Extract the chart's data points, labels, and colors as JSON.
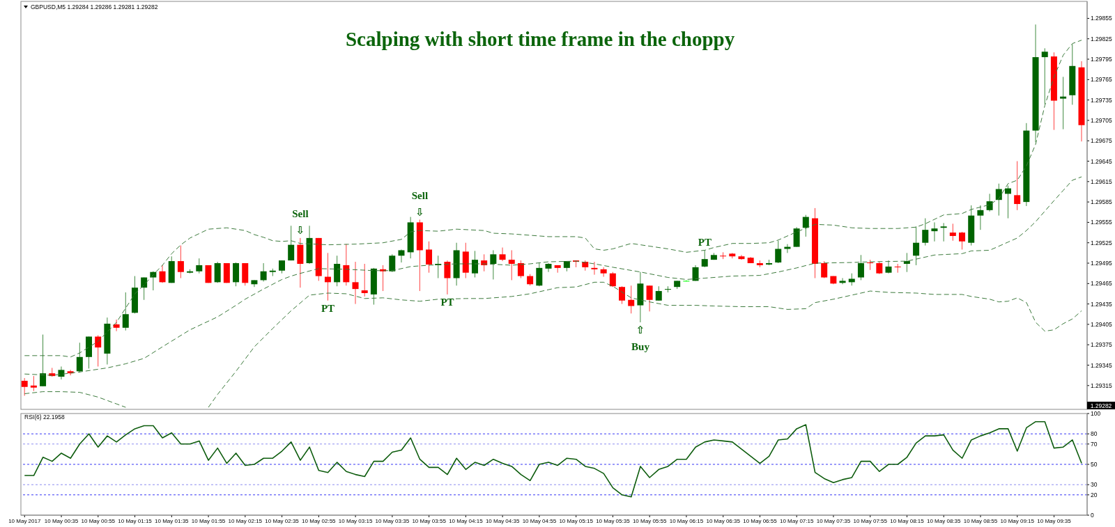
{
  "chart_data": [
    {
      "type": "candlestick",
      "title": "Scalping with short time frame in the choppy",
      "subtitle": "GBPUSD,M5  1.29284 1.29286 1.29281 1.29282",
      "x": [
        "2017-05-10T00:15",
        "2017-05-10T00:20",
        "2017-05-10T00:25",
        "2017-05-10T00:30",
        "2017-05-10T00:35",
        "2017-05-10T00:40",
        "2017-05-10T00:45",
        "2017-05-10T00:50",
        "2017-05-10T00:55",
        "2017-05-10T01:00",
        "2017-05-10T01:05",
        "2017-05-10T01:10",
        "2017-05-10T01:15",
        "2017-05-10T01:20",
        "2017-05-10T01:25",
        "2017-05-10T01:30",
        "2017-05-10T01:35",
        "2017-05-10T01:40",
        "2017-05-10T01:45",
        "2017-05-10T01:50",
        "2017-05-10T01:55",
        "2017-05-10T02:00",
        "2017-05-10T02:05",
        "2017-05-10T02:10",
        "2017-05-10T02:15",
        "2017-05-10T02:20",
        "2017-05-10T02:25",
        "2017-05-10T02:30",
        "2017-05-10T02:35",
        "2017-05-10T02:40",
        "2017-05-10T02:45",
        "2017-05-10T02:50",
        "2017-05-10T02:55",
        "2017-05-10T03:00",
        "2017-05-10T03:05",
        "2017-05-10T03:10",
        "2017-05-10T03:15",
        "2017-05-10T03:20",
        "2017-05-10T03:25",
        "2017-05-10T03:30",
        "2017-05-10T03:35",
        "2017-05-10T03:40",
        "2017-05-10T03:45",
        "2017-05-10T03:50",
        "2017-05-10T03:55",
        "2017-05-10T04:00",
        "2017-05-10T04:05",
        "2017-05-10T04:10",
        "2017-05-10T04:15",
        "2017-05-10T04:20",
        "2017-05-10T04:25",
        "2017-05-10T04:30",
        "2017-05-10T04:35",
        "2017-05-10T04:40",
        "2017-05-10T04:45",
        "2017-05-10T04:50",
        "2017-05-10T04:55",
        "2017-05-10T05:00",
        "2017-05-10T05:05",
        "2017-05-10T05:10",
        "2017-05-10T05:15",
        "2017-05-10T05:20",
        "2017-05-10T05:25",
        "2017-05-10T05:30",
        "2017-05-10T05:35",
        "2017-05-10T05:40",
        "2017-05-10T05:45",
        "2017-05-10T05:50",
        "2017-05-10T05:55",
        "2017-05-10T06:00",
        "2017-05-10T06:05",
        "2017-05-10T06:10",
        "2017-05-10T06:15",
        "2017-05-10T06:20",
        "2017-05-10T06:25",
        "2017-05-10T06:30",
        "2017-05-10T06:35",
        "2017-05-10T06:40",
        "2017-05-10T06:45",
        "2017-05-10T06:50",
        "2017-05-10T06:55",
        "2017-05-10T07:00",
        "2017-05-10T07:05",
        "2017-05-10T07:10",
        "2017-05-10T07:15",
        "2017-05-10T07:20",
        "2017-05-10T07:25",
        "2017-05-10T07:30",
        "2017-05-10T07:35",
        "2017-05-10T07:40",
        "2017-05-10T07:45",
        "2017-05-10T07:50",
        "2017-05-10T07:55",
        "2017-05-10T08:00",
        "2017-05-10T08:05",
        "2017-05-10T08:10",
        "2017-05-10T08:15",
        "2017-05-10T08:20",
        "2017-05-10T08:25",
        "2017-05-10T08:30",
        "2017-05-10T08:35",
        "2017-05-10T08:40",
        "2017-05-10T08:45",
        "2017-05-10T08:50",
        "2017-05-10T08:55",
        "2017-05-10T09:00",
        "2017-05-10T09:05",
        "2017-05-10T09:10",
        "2017-05-10T09:15",
        "2017-05-10T09:20",
        "2017-05-10T09:25",
        "2017-05-10T09:30",
        "2017-05-10T09:35",
        "2017-05-10T09:40",
        "2017-05-10T09:45",
        "2017-05-10T09:50"
      ],
      "ohlc": [
        [
          1.29322,
          1.29326,
          1.293,
          1.29313
        ],
        [
          1.29315,
          1.29329,
          1.29307,
          1.29312
        ],
        [
          1.29314,
          1.2939,
          1.29314,
          1.29333
        ],
        [
          1.29333,
          1.29341,
          1.29328,
          1.29329
        ],
        [
          1.29328,
          1.29343,
          1.29324,
          1.29338
        ],
        [
          1.29336,
          1.29338,
          1.2933,
          1.29333
        ],
        [
          1.29336,
          1.29378,
          1.29334,
          1.29357
        ],
        [
          1.29357,
          1.29387,
          1.2934,
          1.29387
        ],
        [
          1.29387,
          1.29389,
          1.29343,
          1.29371
        ],
        [
          1.29362,
          1.29415,
          1.29346,
          1.29406
        ],
        [
          1.29405,
          1.29412,
          1.29395,
          1.294
        ],
        [
          1.294,
          1.29452,
          1.29396,
          1.2942
        ],
        [
          1.29422,
          1.29476,
          1.29421,
          1.29459
        ],
        [
          1.29459,
          1.29474,
          1.29441,
          1.29474
        ],
        [
          1.29474,
          1.29483,
          1.29455,
          1.29482
        ],
        [
          1.29483,
          1.29492,
          1.29466,
          1.29467
        ],
        [
          1.29466,
          1.29505,
          1.29466,
          1.29498
        ],
        [
          1.29498,
          1.29521,
          1.29473,
          1.29482
        ],
        [
          1.29481,
          1.29486,
          1.2948,
          1.29483
        ],
        [
          1.29483,
          1.29502,
          1.2948,
          1.29492
        ],
        [
          1.29492,
          1.29492,
          1.29466,
          1.29466
        ],
        [
          1.29467,
          1.29497,
          1.29466,
          1.29495
        ],
        [
          1.29495,
          1.29495,
          1.29466,
          1.29466
        ],
        [
          1.29467,
          1.29496,
          1.29461,
          1.29495
        ],
        [
          1.29495,
          1.29495,
          1.29462,
          1.29466
        ],
        [
          1.29464,
          1.2947,
          1.2946,
          1.2947
        ],
        [
          1.2947,
          1.29495,
          1.29468,
          1.29483
        ],
        [
          1.29482,
          1.29487,
          1.29476,
          1.29484
        ],
        [
          1.29484,
          1.29499,
          1.2948,
          1.29499
        ],
        [
          1.29499,
          1.2955,
          1.29499,
          1.29522
        ],
        [
          1.29522,
          1.29532,
          1.29459,
          1.29494
        ],
        [
          1.29495,
          1.2955,
          1.29494,
          1.29532
        ],
        [
          1.29532,
          1.29532,
          1.29469,
          1.29476
        ],
        [
          1.29475,
          1.2951,
          1.2944,
          1.29467
        ],
        [
          1.29467,
          1.29506,
          1.29461,
          1.29494
        ],
        [
          1.29492,
          1.29523,
          1.29462,
          1.29467
        ],
        [
          1.29467,
          1.29497,
          1.29435,
          1.29457
        ],
        [
          1.29455,
          1.29494,
          1.29446,
          1.29451
        ],
        [
          1.29449,
          1.29488,
          1.29434,
          1.29487
        ],
        [
          1.29486,
          1.29492,
          1.29454,
          1.29483
        ],
        [
          1.29483,
          1.29508,
          1.29482,
          1.29506
        ],
        [
          1.29506,
          1.29515,
          1.29496,
          1.29514
        ],
        [
          1.29511,
          1.29563,
          1.29502,
          1.29555
        ],
        [
          1.29555,
          1.29559,
          1.29454,
          1.29514
        ],
        [
          1.29515,
          1.29527,
          1.29481,
          1.29493
        ],
        [
          1.29492,
          1.29506,
          1.29473,
          1.29494
        ],
        [
          1.29497,
          1.29499,
          1.29449,
          1.29473
        ],
        [
          1.29473,
          1.29525,
          1.29462,
          1.29514
        ],
        [
          1.29512,
          1.29525,
          1.29473,
          1.29481
        ],
        [
          1.2948,
          1.29513,
          1.29474,
          1.295
        ],
        [
          1.29499,
          1.29508,
          1.29483,
          1.29492
        ],
        [
          1.29494,
          1.29514,
          1.29471,
          1.29508
        ],
        [
          1.29508,
          1.29518,
          1.29498,
          1.295
        ],
        [
          1.295,
          1.29514,
          1.2947,
          1.29494
        ],
        [
          1.29495,
          1.29499,
          1.29473,
          1.29476
        ],
        [
          1.29476,
          1.29479,
          1.29462,
          1.29464
        ],
        [
          1.29462,
          1.29495,
          1.29461,
          1.29488
        ],
        [
          1.29487,
          1.29495,
          1.29482,
          1.29494
        ],
        [
          1.29492,
          1.29492,
          1.29481,
          1.29488
        ],
        [
          1.29488,
          1.29498,
          1.29483,
          1.29498
        ],
        [
          1.29499,
          1.29499,
          1.29489,
          1.29497
        ],
        [
          1.29497,
          1.29499,
          1.29484,
          1.29489
        ],
        [
          1.29488,
          1.29497,
          1.29478,
          1.29486
        ],
        [
          1.29486,
          1.29489,
          1.29475,
          1.2948
        ],
        [
          1.2948,
          1.29482,
          1.2946,
          1.29461
        ],
        [
          1.2946,
          1.29461,
          1.29435,
          1.2944
        ],
        [
          1.29441,
          1.29462,
          1.29421,
          1.29432
        ],
        [
          1.29433,
          1.29482,
          1.29408,
          1.29465
        ],
        [
          1.29462,
          1.29462,
          1.29424,
          1.29441
        ],
        [
          1.2944,
          1.29461,
          1.2944,
          1.29454
        ],
        [
          1.29456,
          1.29461,
          1.29452,
          1.29457
        ],
        [
          1.2946,
          1.29469,
          1.29457,
          1.29469
        ],
        [
          1.29469,
          1.2947,
          1.29468,
          1.29469
        ],
        [
          1.29469,
          1.29492,
          1.29469,
          1.29489
        ],
        [
          1.2949,
          1.29514,
          1.29489,
          1.29501
        ],
        [
          1.295,
          1.2951,
          1.295,
          1.29507
        ],
        [
          1.29506,
          1.29511,
          1.29501,
          1.29505
        ],
        [
          1.29509,
          1.2951,
          1.29502,
          1.29505
        ],
        [
          1.29505,
          1.29507,
          1.295,
          1.29501
        ],
        [
          1.29503,
          1.29504,
          1.29495,
          1.29495
        ],
        [
          1.29495,
          1.29499,
          1.29489,
          1.29492
        ],
        [
          1.29493,
          1.295,
          1.29492,
          1.29495
        ],
        [
          1.29496,
          1.29528,
          1.29495,
          1.29516
        ],
        [
          1.29516,
          1.29523,
          1.2951,
          1.29519
        ],
        [
          1.29519,
          1.29548,
          1.29519,
          1.29546
        ],
        [
          1.29547,
          1.29566,
          1.29534,
          1.29563
        ],
        [
          1.29561,
          1.29576,
          1.29473,
          1.29494
        ],
        [
          1.29495,
          1.29498,
          1.29473,
          1.29474
        ],
        [
          1.29476,
          1.29476,
          1.29464,
          1.29465
        ],
        [
          1.29466,
          1.29473,
          1.29464,
          1.29469
        ],
        [
          1.29467,
          1.2948,
          1.29462,
          1.29472
        ],
        [
          1.29474,
          1.29507,
          1.2947,
          1.29495
        ],
        [
          1.29496,
          1.295,
          1.29485,
          1.29495
        ],
        [
          1.29495,
          1.29497,
          1.29479,
          1.2948
        ],
        [
          1.29481,
          1.29499,
          1.2948,
          1.2949
        ],
        [
          1.2949,
          1.29494,
          1.29481,
          1.29489
        ],
        [
          1.29494,
          1.2951,
          1.29482,
          1.29498
        ],
        [
          1.29506,
          1.29549,
          1.29492,
          1.29525
        ],
        [
          1.29525,
          1.29561,
          1.29521,
          1.29544
        ],
        [
          1.29542,
          1.29555,
          1.29527,
          1.29546
        ],
        [
          1.29547,
          1.29554,
          1.29527,
          1.29549
        ],
        [
          1.2954,
          1.29553,
          1.29528,
          1.29535
        ],
        [
          1.2954,
          1.29541,
          1.29515,
          1.29527
        ],
        [
          1.29525,
          1.2958,
          1.29521,
          1.29565
        ],
        [
          1.29565,
          1.2958,
          1.29544,
          1.29573
        ],
        [
          1.29573,
          1.29597,
          1.29571,
          1.29586
        ],
        [
          1.29588,
          1.29612,
          1.29565,
          1.29604
        ],
        [
          1.29597,
          1.29609,
          1.29561,
          1.29605
        ],
        [
          1.29595,
          1.29645,
          1.29573,
          1.29582
        ],
        [
          1.29585,
          1.29701,
          1.29579,
          1.2969
        ],
        [
          1.2969,
          1.29846,
          1.29673,
          1.29798
        ],
        [
          1.29798,
          1.29811,
          1.29729,
          1.29806
        ],
        [
          1.29799,
          1.29805,
          1.29691,
          1.29734
        ],
        [
          1.29737,
          1.29769,
          1.29692,
          1.2974
        ],
        [
          1.29742,
          1.29817,
          1.29728,
          1.29785
        ],
        [
          1.29783,
          1.29792,
          1.29674,
          1.29698
        ]
      ],
      "colors": [
        "#ff0000",
        "#ff0000",
        "#006400",
        "#ff0000",
        "#006400",
        "#ff0000",
        "#006400",
        "#006400",
        "#ff0000",
        "#006400",
        "#ff0000",
        "#006400",
        "#006400",
        "#006400",
        "#006400",
        "#ff0000",
        "#006400",
        "#ff0000",
        "#006400",
        "#006400",
        "#ff0000",
        "#006400",
        "#ff0000",
        "#006400",
        "#ff0000",
        "#006400",
        "#006400",
        "#006400",
        "#006400",
        "#006400",
        "#ff0000",
        "#006400",
        "#ff0000",
        "#ff0000",
        "#006400",
        "#ff0000",
        "#ff0000",
        "#ff0000",
        "#006400",
        "#ff0000",
        "#006400",
        "#006400",
        "#006400",
        "#ff0000",
        "#ff0000",
        "#006400",
        "#ff0000",
        "#006400",
        "#ff0000",
        "#006400",
        "#ff0000",
        "#006400",
        "#ff0000",
        "#ff0000",
        "#ff0000",
        "#ff0000",
        "#006400",
        "#006400",
        "#ff0000",
        "#006400",
        "#ff0000",
        "#ff0000",
        "#ff0000",
        "#ff0000",
        "#ff0000",
        "#ff0000",
        "#ff0000",
        "#006400",
        "#ff0000",
        "#006400",
        "#006400",
        "#006400",
        "#00ff00",
        "#006400",
        "#006400",
        "#006400",
        "#ff0000",
        "#ff0000",
        "#ff0000",
        "#ff0000",
        "#ff0000",
        "#006400",
        "#006400",
        "#006400",
        "#006400",
        "#006400",
        "#ff0000",
        "#ff0000",
        "#ff0000",
        "#006400",
        "#006400",
        "#006400",
        "#ff0000",
        "#ff0000",
        "#006400",
        "#ff0000",
        "#006400",
        "#006400",
        "#006400",
        "#006400",
        "#006400",
        "#ff0000",
        "#ff0000",
        "#006400",
        "#006400",
        "#006400",
        "#006400",
        "#006400",
        "#ff0000",
        "#006400",
        "#006400",
        "#006400",
        "#ff0000",
        "#006400",
        "#006400",
        "#ff0000"
      ],
      "series": [
        {
          "type": "line",
          "color": "#3c7a3c",
          "line_style": "dashed",
          "x": [
            "2017-05-10T00:15",
            "2017-05-10T00:25",
            "2017-05-10T00:35",
            "2017-05-10T00:40",
            "2017-05-10T00:45",
            "2017-05-10T00:55",
            "2017-05-10T01:05",
            "2017-05-10T01:15",
            "2017-05-10T01:20",
            "2017-05-10T01:25",
            "2017-05-10T01:30",
            "2017-05-10T01:35",
            "2017-05-10T01:40",
            "2017-05-10T01:45",
            "2017-05-10T01:55",
            "2017-05-10T02:05",
            "2017-05-10T02:15",
            "2017-05-10T02:20",
            "2017-05-10T02:25",
            "2017-05-10T02:30",
            "2017-05-10T02:35",
            "2017-05-10T02:40",
            "2017-05-10T02:45",
            "2017-05-10T03:00",
            "2017-05-10T03:15",
            "2017-05-10T03:30",
            "2017-05-10T03:40",
            "2017-05-10T03:45",
            "2017-05-10T03:50",
            "2017-05-10T04:00",
            "2017-05-10T04:10",
            "2017-05-10T04:25",
            "2017-05-10T04:30",
            "2017-05-10T04:40",
            "2017-05-10T04:50",
            "2017-05-10T05:00",
            "2017-05-10T05:15",
            "2017-05-10T05:20",
            "2017-05-10T05:25",
            "2017-05-10T05:30",
            "2017-05-10T05:35",
            "2017-05-10T05:45",
            "2017-05-10T05:55",
            "2017-05-10T06:05",
            "2017-05-10T06:15",
            "2017-05-10T06:25",
            "2017-05-10T06:30",
            "2017-05-10T06:40",
            "2017-05-10T06:50",
            "2017-05-10T07:00",
            "2017-05-10T07:05",
            "2017-05-10T07:15",
            "2017-05-10T07:25",
            "2017-05-10T07:35",
            "2017-05-10T07:45",
            "2017-05-10T07:55",
            "2017-05-10T08:10",
            "2017-05-10T08:20",
            "2017-05-10T08:25",
            "2017-05-10T08:35",
            "2017-05-10T08:45",
            "2017-05-10T08:50",
            "2017-05-10T09:00",
            "2017-05-10T09:05",
            "2017-05-10T09:10",
            "2017-05-10T09:15",
            "2017-05-10T09:20",
            "2017-05-10T09:25",
            "2017-05-10T09:30",
            "2017-05-10T09:35",
            "2017-05-10T09:40",
            "2017-05-10T09:45",
            "2017-05-10T09:50"
          ],
          "values": [
            1.29359,
            1.29359,
            1.29359,
            1.29357,
            1.29363,
            1.2938,
            1.29408,
            1.2945,
            1.29463,
            1.29478,
            1.29492,
            1.29509,
            1.29522,
            1.29532,
            1.29545,
            1.29547,
            1.29543,
            1.29537,
            1.29533,
            1.29528,
            1.29527,
            1.29528,
            1.29524,
            1.29522,
            1.29523,
            1.29525,
            1.2953,
            1.29541,
            1.29543,
            1.29542,
            1.29545,
            1.29543,
            1.29539,
            1.29538,
            1.29536,
            1.29534,
            1.29534,
            1.29532,
            1.29516,
            1.29514,
            1.29516,
            1.29524,
            1.2952,
            1.29516,
            1.29511,
            1.29514,
            1.29518,
            1.29524,
            1.29524,
            1.29525,
            1.29529,
            1.29541,
            1.29552,
            1.29551,
            1.29547,
            1.29546,
            1.29546,
            1.29548,
            1.29553,
            1.29566,
            1.29568,
            1.29574,
            1.29581,
            1.2959,
            1.29612,
            1.29617,
            1.29638,
            1.2967,
            1.29727,
            1.29769,
            1.29801,
            1.29818,
            1.29823
          ]
        },
        {
          "type": "line",
          "color": "#3c7a3c",
          "line_style": "dashed",
          "x": [
            "2017-05-10T00:15",
            "2017-05-10T00:30",
            "2017-05-10T00:45",
            "2017-05-10T01:00",
            "2017-05-10T01:10",
            "2017-05-10T01:20",
            "2017-05-10T01:30",
            "2017-05-10T01:45",
            "2017-05-10T02:00",
            "2017-05-10T02:10",
            "2017-05-10T02:15",
            "2017-05-10T02:25",
            "2017-05-10T02:35",
            "2017-05-10T02:40",
            "2017-05-10T02:45",
            "2017-05-10T02:55",
            "2017-05-10T03:10",
            "2017-05-10T03:25",
            "2017-05-10T03:35",
            "2017-05-10T03:45",
            "2017-05-10T03:55",
            "2017-05-10T04:10",
            "2017-05-10T04:25",
            "2017-05-10T04:40",
            "2017-05-10T04:50",
            "2017-05-10T05:00",
            "2017-05-10T05:15",
            "2017-05-10T05:25",
            "2017-05-10T05:35",
            "2017-05-10T05:50",
            "2017-05-10T06:05",
            "2017-05-10T06:15",
            "2017-05-10T06:25",
            "2017-05-10T06:40",
            "2017-05-10T06:55",
            "2017-05-10T07:05",
            "2017-05-10T07:15",
            "2017-05-10T07:25",
            "2017-05-10T07:45",
            "2017-05-10T07:55",
            "2017-05-10T08:15",
            "2017-05-10T08:20",
            "2017-05-10T08:30",
            "2017-05-10T08:45",
            "2017-05-10T08:50",
            "2017-05-10T09:00",
            "2017-05-10T09:10",
            "2017-05-10T09:15",
            "2017-05-10T09:20",
            "2017-05-10T09:25",
            "2017-05-10T09:35",
            "2017-05-10T09:40",
            "2017-05-10T09:45",
            "2017-05-10T09:50"
          ],
          "values": [
            1.29332,
            1.2933,
            1.29335,
            1.29341,
            1.29347,
            1.29355,
            1.29372,
            1.29397,
            1.29416,
            1.29433,
            1.29442,
            1.29457,
            1.29471,
            1.29476,
            1.2948,
            1.29487,
            1.29486,
            1.29484,
            1.29484,
            1.2949,
            1.29492,
            1.29494,
            1.29494,
            1.29492,
            1.29494,
            1.29497,
            1.29498,
            1.29494,
            1.29489,
            1.29482,
            1.29474,
            1.29471,
            1.29473,
            1.29476,
            1.29477,
            1.29482,
            1.29488,
            1.29495,
            1.29496,
            1.29497,
            1.29498,
            1.29501,
            1.29507,
            1.29509,
            1.29513,
            1.29514,
            1.29526,
            1.29532,
            1.29543,
            1.29556,
            1.29587,
            1.29602,
            1.29617,
            1.29622
          ]
        },
        {
          "type": "line",
          "color": "#3c7a3c",
          "line_style": "dashed",
          "x": [
            "2017-05-10T00:15",
            "2017-05-10T00:25",
            "2017-05-10T00:35",
            "2017-05-10T00:45",
            "2017-05-10T00:55",
            "2017-05-10T01:05",
            "2017-05-10T01:10",
            "2017-05-10T01:30",
            "2017-05-10T01:55",
            "2017-05-10T02:00",
            "2017-05-10T02:10",
            "2017-05-10T02:20",
            "2017-05-10T02:30",
            "2017-05-10T02:40",
            "2017-05-10T02:50",
            "2017-05-10T03:00",
            "2017-05-10T03:10",
            "2017-05-10T03:20",
            "2017-05-10T03:30",
            "2017-05-10T03:40",
            "2017-05-10T03:50",
            "2017-05-10T04:00",
            "2017-05-10T04:15",
            "2017-05-10T04:25",
            "2017-05-10T04:40",
            "2017-05-10T04:50",
            "2017-05-10T05:00",
            "2017-05-10T05:05",
            "2017-05-10T05:15",
            "2017-05-10T05:25",
            "2017-05-10T05:30",
            "2017-05-10T05:35",
            "2017-05-10T05:45",
            "2017-05-10T05:55",
            "2017-05-10T06:05",
            "2017-05-10T06:20",
            "2017-05-10T06:30",
            "2017-05-10T06:45",
            "2017-05-10T07:00",
            "2017-05-10T07:10",
            "2017-05-10T07:20",
            "2017-05-10T07:25",
            "2017-05-10T07:35",
            "2017-05-10T07:45",
            "2017-05-10T07:55",
            "2017-05-10T08:05",
            "2017-05-10T08:20",
            "2017-05-10T08:30",
            "2017-05-10T08:45",
            "2017-05-10T08:50",
            "2017-05-10T09:00",
            "2017-05-10T09:05",
            "2017-05-10T09:10",
            "2017-05-10T09:15",
            "2017-05-10T09:20",
            "2017-05-10T09:25",
            "2017-05-10T09:30",
            "2017-05-10T09:35",
            "2017-05-10T09:40",
            "2017-05-10T09:45",
            "2017-05-10T09:50"
          ],
          "values": [
            1.29303,
            1.29306,
            1.29306,
            1.29305,
            1.29298,
            1.29288,
            1.29283,
            null,
            1.29283,
            1.29302,
            1.29336,
            1.29372,
            1.29399,
            1.29425,
            1.29448,
            1.29451,
            1.2945,
            1.29443,
            1.29444,
            1.29441,
            1.29439,
            1.29442,
            1.29443,
            1.29443,
            1.29446,
            1.2945,
            1.29456,
            1.29459,
            1.2946,
            1.29467,
            1.29467,
            1.29461,
            1.29444,
            1.29438,
            1.29433,
            1.29433,
            1.29432,
            1.29431,
            1.29431,
            1.29427,
            1.29428,
            1.29437,
            1.29442,
            1.29448,
            1.29454,
            1.29452,
            1.29451,
            1.29449,
            1.29449,
            1.29446,
            1.29442,
            1.29438,
            1.29439,
            1.29444,
            1.29437,
            1.29408,
            1.29395,
            1.29397,
            1.29406,
            1.29413,
            1.29425
          ]
        }
      ],
      "xlim": [
        "2017-05-10T00:13",
        "2017-05-10T09:53"
      ],
      "ylim": [
        1.2928,
        1.2988
      ],
      "yticks": [
        1.29315,
        1.29345,
        1.29375,
        1.29405,
        1.29435,
        1.29465,
        1.29495,
        1.29525,
        1.29555,
        1.29585,
        1.29615,
        1.29645,
        1.29675,
        1.29705,
        1.29735,
        1.29765,
        1.29795,
        1.29825,
        1.29855
      ],
      "tick_labels": "y",
      "annotations": [
        {
          "text": "Sell\n⇩",
          "x": "2017-05-10T02:45",
          "y": 1.29532
        },
        {
          "text": "PT",
          "x": "2017-05-10T03:00",
          "y": 1.2944
        },
        {
          "text": "Sell\n⇩",
          "x": "2017-05-10T03:50",
          "y": 1.29559
        },
        {
          "text": "PT",
          "x": "2017-05-10T04:05",
          "y": 1.29449
        },
        {
          "text": "⇧\nBuy",
          "x": "2017-05-10T05:50",
          "y": 1.29408
        },
        {
          "text": "PT",
          "x": "2017-05-10T06:25",
          "y": 1.29514
        },
        "1.29282"
      ]
    },
    {
      "type": "line",
      "title": "RSI(6) 22.1958",
      "x": [
        "2017-05-10T00:15",
        "2017-05-10T00:20",
        "2017-05-10T00:25",
        "2017-05-10T00:30",
        "2017-05-10T00:35",
        "2017-05-10T00:40",
        "2017-05-10T00:45",
        "2017-05-10T00:50",
        "2017-05-10T00:55",
        "2017-05-10T01:00",
        "2017-05-10T01:05",
        "2017-05-10T01:10",
        "2017-05-10T01:15",
        "2017-05-10T01:20",
        "2017-05-10T01:25",
        "2017-05-10T01:30",
        "2017-05-10T01:35",
        "2017-05-10T01:40",
        "2017-05-10T01:45",
        "2017-05-10T01:50",
        "2017-05-10T01:55",
        "2017-05-10T02:00",
        "2017-05-10T02:05",
        "2017-05-10T02:10",
        "2017-05-10T02:15",
        "2017-05-10T02:20",
        "2017-05-10T02:25",
        "2017-05-10T02:30",
        "2017-05-10T02:35",
        "2017-05-10T02:40",
        "2017-05-10T02:45",
        "2017-05-10T02:50",
        "2017-05-10T02:55",
        "2017-05-10T03:00",
        "2017-05-10T03:05",
        "2017-05-10T03:10",
        "2017-05-10T03:15",
        "2017-05-10T03:20",
        "2017-05-10T03:25",
        "2017-05-10T03:30",
        "2017-05-10T03:35",
        "2017-05-10T03:40",
        "2017-05-10T03:45",
        "2017-05-10T03:50",
        "2017-05-10T03:55",
        "2017-05-10T04:00",
        "2017-05-10T04:05",
        "2017-05-10T04:10",
        "2017-05-10T04:15",
        "2017-05-10T04:20",
        "2017-05-10T04:25",
        "2017-05-10T04:30",
        "2017-05-10T04:35",
        "2017-05-10T04:40",
        "2017-05-10T04:45",
        "2017-05-10T04:50",
        "2017-05-10T04:55",
        "2017-05-10T05:00",
        "2017-05-10T05:05",
        "2017-05-10T05:10",
        "2017-05-10T05:15",
        "2017-05-10T05:20",
        "2017-05-10T05:25",
        "2017-05-10T05:30",
        "2017-05-10T05:35",
        "2017-05-10T05:40",
        "2017-05-10T05:45",
        "2017-05-10T05:50",
        "2017-05-10T05:55",
        "2017-05-10T06:00",
        "2017-05-10T06:05",
        "2017-05-10T06:10",
        "2017-05-10T06:15",
        "2017-05-10T06:20",
        "2017-05-10T06:25",
        "2017-05-10T06:30",
        "2017-05-10T06:35",
        "2017-05-10T06:40",
        "2017-05-10T06:45",
        "2017-05-10T06:50",
        "2017-05-10T06:55",
        "2017-05-10T07:00",
        "2017-05-10T07:05",
        "2017-05-10T07:10",
        "2017-05-10T07:15",
        "2017-05-10T07:20",
        "2017-05-10T07:25",
        "2017-05-10T07:30",
        "2017-05-10T07:35",
        "2017-05-10T07:40",
        "2017-05-10T07:45",
        "2017-05-10T07:50",
        "2017-05-10T07:55",
        "2017-05-10T08:00",
        "2017-05-10T08:05",
        "2017-05-10T08:10",
        "2017-05-10T08:15",
        "2017-05-10T08:20",
        "2017-05-10T08:25",
        "2017-05-10T08:30",
        "2017-05-10T08:35",
        "2017-05-10T08:40",
        "2017-05-10T08:45",
        "2017-05-10T08:50",
        "2017-05-10T08:55",
        "2017-05-10T09:00",
        "2017-05-10T09:05",
        "2017-05-10T09:10",
        "2017-05-10T09:15",
        "2017-05-10T09:20",
        "2017-05-10T09:25",
        "2017-05-10T09:30",
        "2017-05-10T09:35",
        "2017-05-10T09:40",
        "2017-05-10T09:45",
        "2017-05-10T09:50"
      ],
      "values": [
        39,
        39,
        57,
        53,
        61,
        56,
        70,
        80,
        67,
        78,
        72,
        79,
        85,
        88,
        88,
        76,
        81,
        70,
        70,
        73,
        54,
        66,
        51,
        61,
        49,
        50,
        56,
        56,
        63,
        72,
        54,
        67,
        44,
        42,
        52,
        43,
        40,
        38,
        53,
        53,
        62,
        64,
        76,
        55,
        47,
        47,
        40,
        56,
        45,
        52,
        49,
        55,
        51,
        48,
        40,
        34,
        50,
        52,
        49,
        56,
        55,
        48,
        46,
        41,
        27,
        20,
        18,
        48,
        37,
        45,
        48,
        55,
        55,
        67,
        72,
        74,
        73,
        72,
        65,
        58,
        51,
        58,
        74,
        75,
        85,
        89,
        42,
        36,
        32,
        35,
        37,
        53,
        53,
        43,
        50,
        50,
        57,
        71,
        78,
        78,
        79,
        64,
        56,
        74,
        78,
        81,
        85,
        85,
        63,
        86,
        92,
        92,
        66,
        67,
        74,
        51
      ],
      "color": "#0d5c0d",
      "xlim": [
        "2017-05-10T00:13",
        "2017-05-10T09:53"
      ],
      "xticks": [
        {
          "value": "2017-05-10T00:15",
          "label": "10 May 2017"
        },
        {
          "value": "2017-05-10T00:35",
          "label": "10 May 00:35"
        },
        {
          "value": "2017-05-10T00:55",
          "label": "10 May 00:55"
        },
        {
          "value": "2017-05-10T01:15",
          "label": "10 May 01:15"
        },
        {
          "value": "2017-05-10T01:35",
          "label": "10 May 01:35"
        },
        {
          "value": "2017-05-10T01:55",
          "label": "10 May 01:55"
        },
        {
          "value": "2017-05-10T02:15",
          "label": "10 May 02:15"
        },
        {
          "value": "2017-05-10T02:35",
          "label": "10 May 02:35"
        },
        {
          "value": "2017-05-10T02:55",
          "label": "10 May 02:55"
        },
        {
          "value": "2017-05-10T03:15",
          "label": "10 May 03:15"
        },
        {
          "value": "2017-05-10T03:35",
          "label": "10 May 03:35"
        },
        {
          "value": "2017-05-10T03:55",
          "label": "10 May 03:55"
        },
        {
          "value": "2017-05-10T04:15",
          "label": "10 May 04:15"
        },
        {
          "value": "2017-05-10T04:35",
          "label": "10 May 04:35"
        },
        {
          "value": "2017-05-10T04:55",
          "label": "10 May 04:55"
        },
        {
          "value": "2017-05-10T05:15",
          "label": "10 May 05:15"
        },
        {
          "value": "2017-05-10T05:35",
          "label": "10 May 05:35"
        },
        {
          "value": "2017-05-10T05:55",
          "label": "10 May 05:55"
        },
        {
          "value": "2017-05-10T06:15",
          "label": "10 May 06:15"
        },
        {
          "value": "2017-05-10T06:35",
          "label": "10 May 06:35"
        },
        {
          "value": "2017-05-10T06:55",
          "label": "10 May 06:55"
        },
        {
          "value": "2017-05-10T07:15",
          "label": "10 May 07:15"
        },
        {
          "value": "2017-05-10T07:35",
          "label": "10 May 07:35"
        },
        {
          "value": "2017-05-10T07:55",
          "label": "10 May 07:55"
        },
        {
          "value": "2017-05-10T08:15",
          "label": "10 May 08:15"
        },
        {
          "value": "2017-05-10T08:35",
          "label": "10 May 08:35"
        },
        {
          "value": "2017-05-10T08:55",
          "label": "10 May 08:55"
        },
        {
          "value": "2017-05-10T09:15",
          "label": "10 May 09:15"
        },
        {
          "value": "2017-05-10T09:35",
          "label": "10 May 09:35"
        }
      ],
      "ylim": [
        0,
        100
      ],
      "yticks": [
        0,
        20,
        30,
        50,
        70,
        80,
        100
      ],
      "ref_lines": [
        {
          "axis": "y",
          "value": 80,
          "color": "#3535f5",
          "line_style": "dotted"
        },
        {
          "axis": "y",
          "value": 70,
          "color": "#8c8cf0",
          "line_style": "dotted"
        },
        {
          "axis": "y",
          "value": 50,
          "color": "#3535f5",
          "line_style": "dotted"
        },
        {
          "axis": "y",
          "value": 30,
          "color": "#8c8cf0",
          "line_style": "dotted"
        },
        {
          "axis": "y",
          "value": 20,
          "color": "#3535f5",
          "line_style": "dotted"
        }
      ]
    }
  ]
}
